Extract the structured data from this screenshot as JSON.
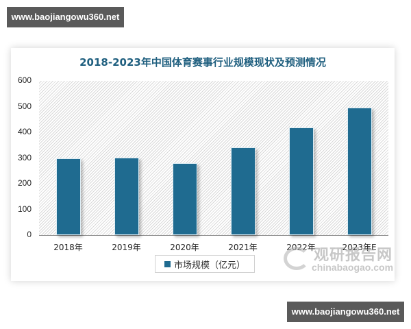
{
  "watermarks": {
    "top": "www.baojiangowu360.net",
    "bottom": "www.baojiangowu360.net"
  },
  "logo": {
    "cn": "观研报告网",
    "en": "chinabaogao.com"
  },
  "chart": {
    "title": "2018-2023年中国体育赛事行业规模现状及预测情况",
    "yticks": [
      "600",
      "500",
      "400",
      "300",
      "200",
      "100",
      "0"
    ],
    "legend": "市场规模（亿元）",
    "bar_color": "#1f6b90"
  },
  "chart_data": {
    "type": "bar",
    "title": "2018-2023年中国体育赛事行业规模现状及预测情况",
    "categories": [
      "2018年",
      "2019年",
      "2020年",
      "2021年",
      "2022年",
      "2023年E"
    ],
    "series": [
      {
        "name": "市场规模（亿元）",
        "values": [
          299,
          301,
          280,
          341,
          419,
          496
        ]
      }
    ],
    "xlabel": "",
    "ylabel": "",
    "ylim": [
      0,
      600
    ],
    "yticks": [
      0,
      100,
      200,
      300,
      400,
      500,
      600
    ],
    "grid": false,
    "legend_position": "bottom"
  }
}
